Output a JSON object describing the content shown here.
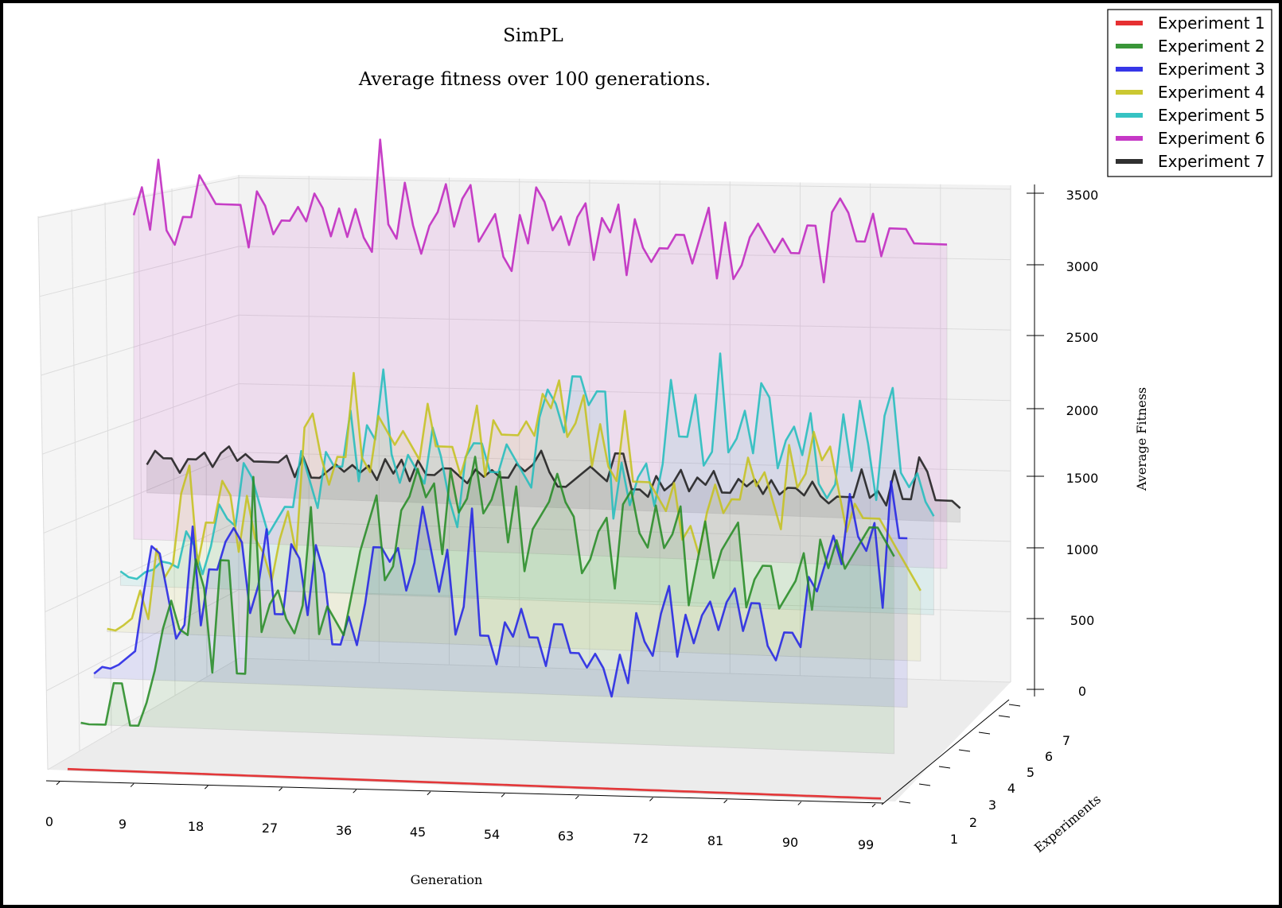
{
  "chart_data": {
    "type": "line",
    "subtype": "3d-waterfall",
    "title": "SimPL",
    "subtitle": "Average fitness over 100 generations.",
    "xlabel": "Generation",
    "ylabel": "Experiments",
    "zlabel": "Average Fitness",
    "xlim": [
      0,
      99
    ],
    "zlim": [
      0,
      3500
    ],
    "x_ticks": [
      0,
      9,
      18,
      27,
      36,
      45,
      54,
      63,
      72,
      81,
      90,
      99
    ],
    "y_ticks": [
      1,
      2,
      3,
      4,
      5,
      6,
      7
    ],
    "z_ticks": [
      0,
      500,
      1000,
      1500,
      2000,
      2500,
      3000,
      3500
    ],
    "grid": true,
    "legend_position": "top-right",
    "series": [
      {
        "name": "Experiment 1",
        "color": "#e31a1c",
        "values": [
          10,
          10,
          10,
          10,
          10,
          10,
          10,
          10,
          10,
          10,
          10,
          10,
          10,
          10,
          10,
          10,
          10,
          10,
          10,
          10,
          10,
          10,
          10,
          10,
          10,
          10,
          10,
          10,
          10,
          10,
          10,
          10,
          10,
          10,
          10,
          10,
          10,
          10,
          10,
          10,
          10,
          10,
          10,
          10,
          10,
          10,
          10,
          10,
          10,
          10,
          10,
          10,
          10,
          10,
          10,
          10,
          10,
          10,
          10,
          10,
          10,
          10,
          10,
          10,
          10,
          10,
          10,
          10,
          10,
          10,
          10,
          10,
          10,
          10,
          10,
          10,
          10,
          10,
          10,
          10,
          10,
          10,
          10,
          10,
          10,
          10,
          10,
          10,
          10,
          10,
          10,
          10,
          10,
          10,
          10,
          10,
          10,
          10,
          10,
          10
        ]
      },
      {
        "name": "Experiment 2",
        "color": "#238b22",
        "values": [
          10,
          1,
          2,
          3,
          300,
          300,
          3,
          4,
          170,
          400,
          700,
          900,
          700,
          660,
          1200,
          1000,
          400,
          1200,
          1200,
          400,
          400,
          1800,
          700,
          900,
          1000,
          800,
          700,
          900,
          1600,
          700,
          900,
          800,
          700,
          1000,
          1300,
          1500,
          1700,
          1100,
          1200,
          1600,
          1700,
          1900,
          1700,
          1800,
          1300,
          1900,
          1600,
          1700,
          2000,
          1600,
          1700,
          1900,
          1400,
          1800,
          1200,
          1500,
          1600,
          1700,
          1900,
          1700,
          1600,
          1200,
          1300,
          1500,
          1600,
          1100,
          1700,
          1800,
          1500,
          1400,
          1700,
          1400,
          1500,
          1700,
          1000,
          1300,
          1600,
          1200,
          1400,
          1500,
          1600,
          1000,
          1200,
          1300,
          1300,
          1000,
          1100,
          1200,
          1400,
          1000,
          1500,
          1300,
          1500,
          1300,
          1400,
          1500,
          1600,
          1600,
          1500,
          1400
        ]
      },
      {
        "name": "Experiment 3",
        "color": "#2020e6",
        "values": [
          30,
          80,
          70,
          100,
          150,
          200,
          600,
          950,
          900,
          600,
          300,
          400,
          1100,
          400,
          800,
          800,
          1000,
          1100,
          1000,
          500,
          700,
          1100,
          500,
          500,
          1000,
          900,
          500,
          1000,
          800,
          300,
          300,
          500,
          300,
          600,
          1000,
          1000,
          900,
          1000,
          700,
          900,
          1300,
          1000,
          700,
          1000,
          400,
          600,
          1300,
          400,
          400,
          200,
          500,
          400,
          600,
          400,
          400,
          200,
          500,
          500,
          300,
          300,
          200,
          300,
          200,
          0,
          300,
          100,
          600,
          400,
          300,
          600,
          800,
          300,
          600,
          400,
          600,
          700,
          500,
          700,
          800,
          500,
          700,
          700,
          400,
          300,
          500,
          500,
          400,
          900,
          800,
          1000,
          1200,
          1000,
          1500,
          1200,
          1100,
          1300,
          700,
          1600,
          1200,
          1200
        ]
      },
      {
        "name": "Experiment 4",
        "color": "#c5c21c",
        "values": [
          20,
          10,
          50,
          100,
          300,
          100,
          600,
          400,
          500,
          1000,
          1200,
          500,
          800,
          800,
          1100,
          1000,
          600,
          1000,
          700,
          600,
          400,
          700,
          900,
          600,
          1500,
          1600,
          1300,
          1100,
          1300,
          1300,
          1900,
          1300,
          1200,
          1600,
          1500,
          1400,
          1500,
          1400,
          1300,
          1700,
          1400,
          1400,
          1400,
          1200,
          1400,
          1700,
          1200,
          1600,
          1500,
          1500,
          1500,
          1600,
          1500,
          1800,
          1700,
          1900,
          1500,
          1600,
          1800,
          1300,
          1600,
          1300,
          1200,
          1700,
          1200,
          1200,
          1200,
          1100,
          1000,
          1200,
          800,
          900,
          700,
          1000,
          1200,
          1000,
          1100,
          1100,
          1400,
          1200,
          1300,
          1100,
          900,
          1500,
          1200,
          1300,
          1600,
          1400,
          1500,
          1200,
          900,
          1100,
          1000,
          1000,
          1000,
          900,
          800,
          700,
          600,
          500
        ]
      },
      {
        "name": "Experiment 5",
        "color": "#20bdbd",
        "values": [
          100,
          60,
          50,
          100,
          120,
          180,
          170,
          140,
          400,
          300,
          100,
          300,
          600,
          500,
          450,
          900,
          800,
          600,
          400,
          500,
          600,
          600,
          1000,
          800,
          600,
          1000,
          900,
          900,
          1300,
          800,
          1200,
          1100,
          1600,
          1000,
          800,
          1000,
          900,
          800,
          1200,
          1000,
          700,
          500,
          1000,
          1100,
          1100,
          900,
          900,
          1100,
          1000,
          900,
          800,
          1300,
          1500,
          1400,
          1200,
          1600,
          1600,
          1400,
          1500,
          1500,
          600,
          1000,
          700,
          900,
          1000,
          700,
          1000,
          1600,
          1200,
          1200,
          1500,
          1000,
          1100,
          1800,
          1100,
          1200,
          1400,
          1100,
          1600,
          1500,
          1000,
          1200,
          1300,
          1100,
          1400,
          900,
          800,
          900,
          1400,
          1000,
          1500,
          1200,
          800,
          1400,
          1600,
          1000,
          900,
          1000,
          800,
          700
        ]
      },
      {
        "name": "Experiment 6",
        "color": "#c022c0",
        "values": [
          2300,
          2500,
          2200,
          2700,
          2200,
          2100,
          2300,
          2300,
          2600,
          2500,
          2400,
          2400,
          2400,
          2400,
          2100,
          2500,
          2400,
          2200,
          2300,
          2300,
          2400,
          2300,
          2500,
          2400,
          2200,
          2400,
          2200,
          2400,
          2200,
          2100,
          2900,
          2300,
          2200,
          2600,
          2300,
          2100,
          2300,
          2400,
          2600,
          2300,
          2500,
          2600,
          2200,
          2300,
          2400,
          2100,
          2000,
          2400,
          2200,
          2600,
          2500,
          2300,
          2400,
          2200,
          2400,
          2500,
          2100,
          2400,
          2300,
          2500,
          2000,
          2400,
          2200,
          2100,
          2200,
          2200,
          2300,
          2300,
          2100,
          2300,
          2500,
          2000,
          2400,
          2000,
          2100,
          2300,
          2400,
          2300,
          2200,
          2300,
          2200,
          2200,
          2400,
          2400,
          2000,
          2500,
          2600,
          2500,
          2300,
          2300,
          2500,
          2200,
          2400,
          2400,
          2400,
          2300,
          2300,
          2300,
          2300,
          2300
        ]
      },
      {
        "name": "Experiment 7",
        "color": "#1a1a1a",
        "values": [
          200,
          300,
          250,
          250,
          150,
          250,
          250,
          300,
          200,
          300,
          350,
          250,
          300,
          250,
          250,
          250,
          250,
          300,
          150,
          300,
          150,
          150,
          200,
          250,
          200,
          250,
          200,
          250,
          150,
          300,
          200,
          300,
          150,
          300,
          200,
          200,
          250,
          250,
          200,
          150,
          250,
          200,
          250,
          200,
          200,
          300,
          250,
          300,
          400,
          250,
          150,
          150,
          200,
          250,
          300,
          250,
          200,
          400,
          400,
          150,
          150,
          100,
          250,
          150,
          200,
          300,
          150,
          250,
          200,
          300,
          150,
          150,
          250,
          200,
          250,
          150,
          250,
          150,
          200,
          200,
          150,
          250,
          150,
          100,
          150,
          150,
          150,
          350,
          150,
          200,
          100,
          350,
          150,
          150,
          450,
          350,
          150,
          150,
          150,
          100
        ]
      }
    ]
  }
}
